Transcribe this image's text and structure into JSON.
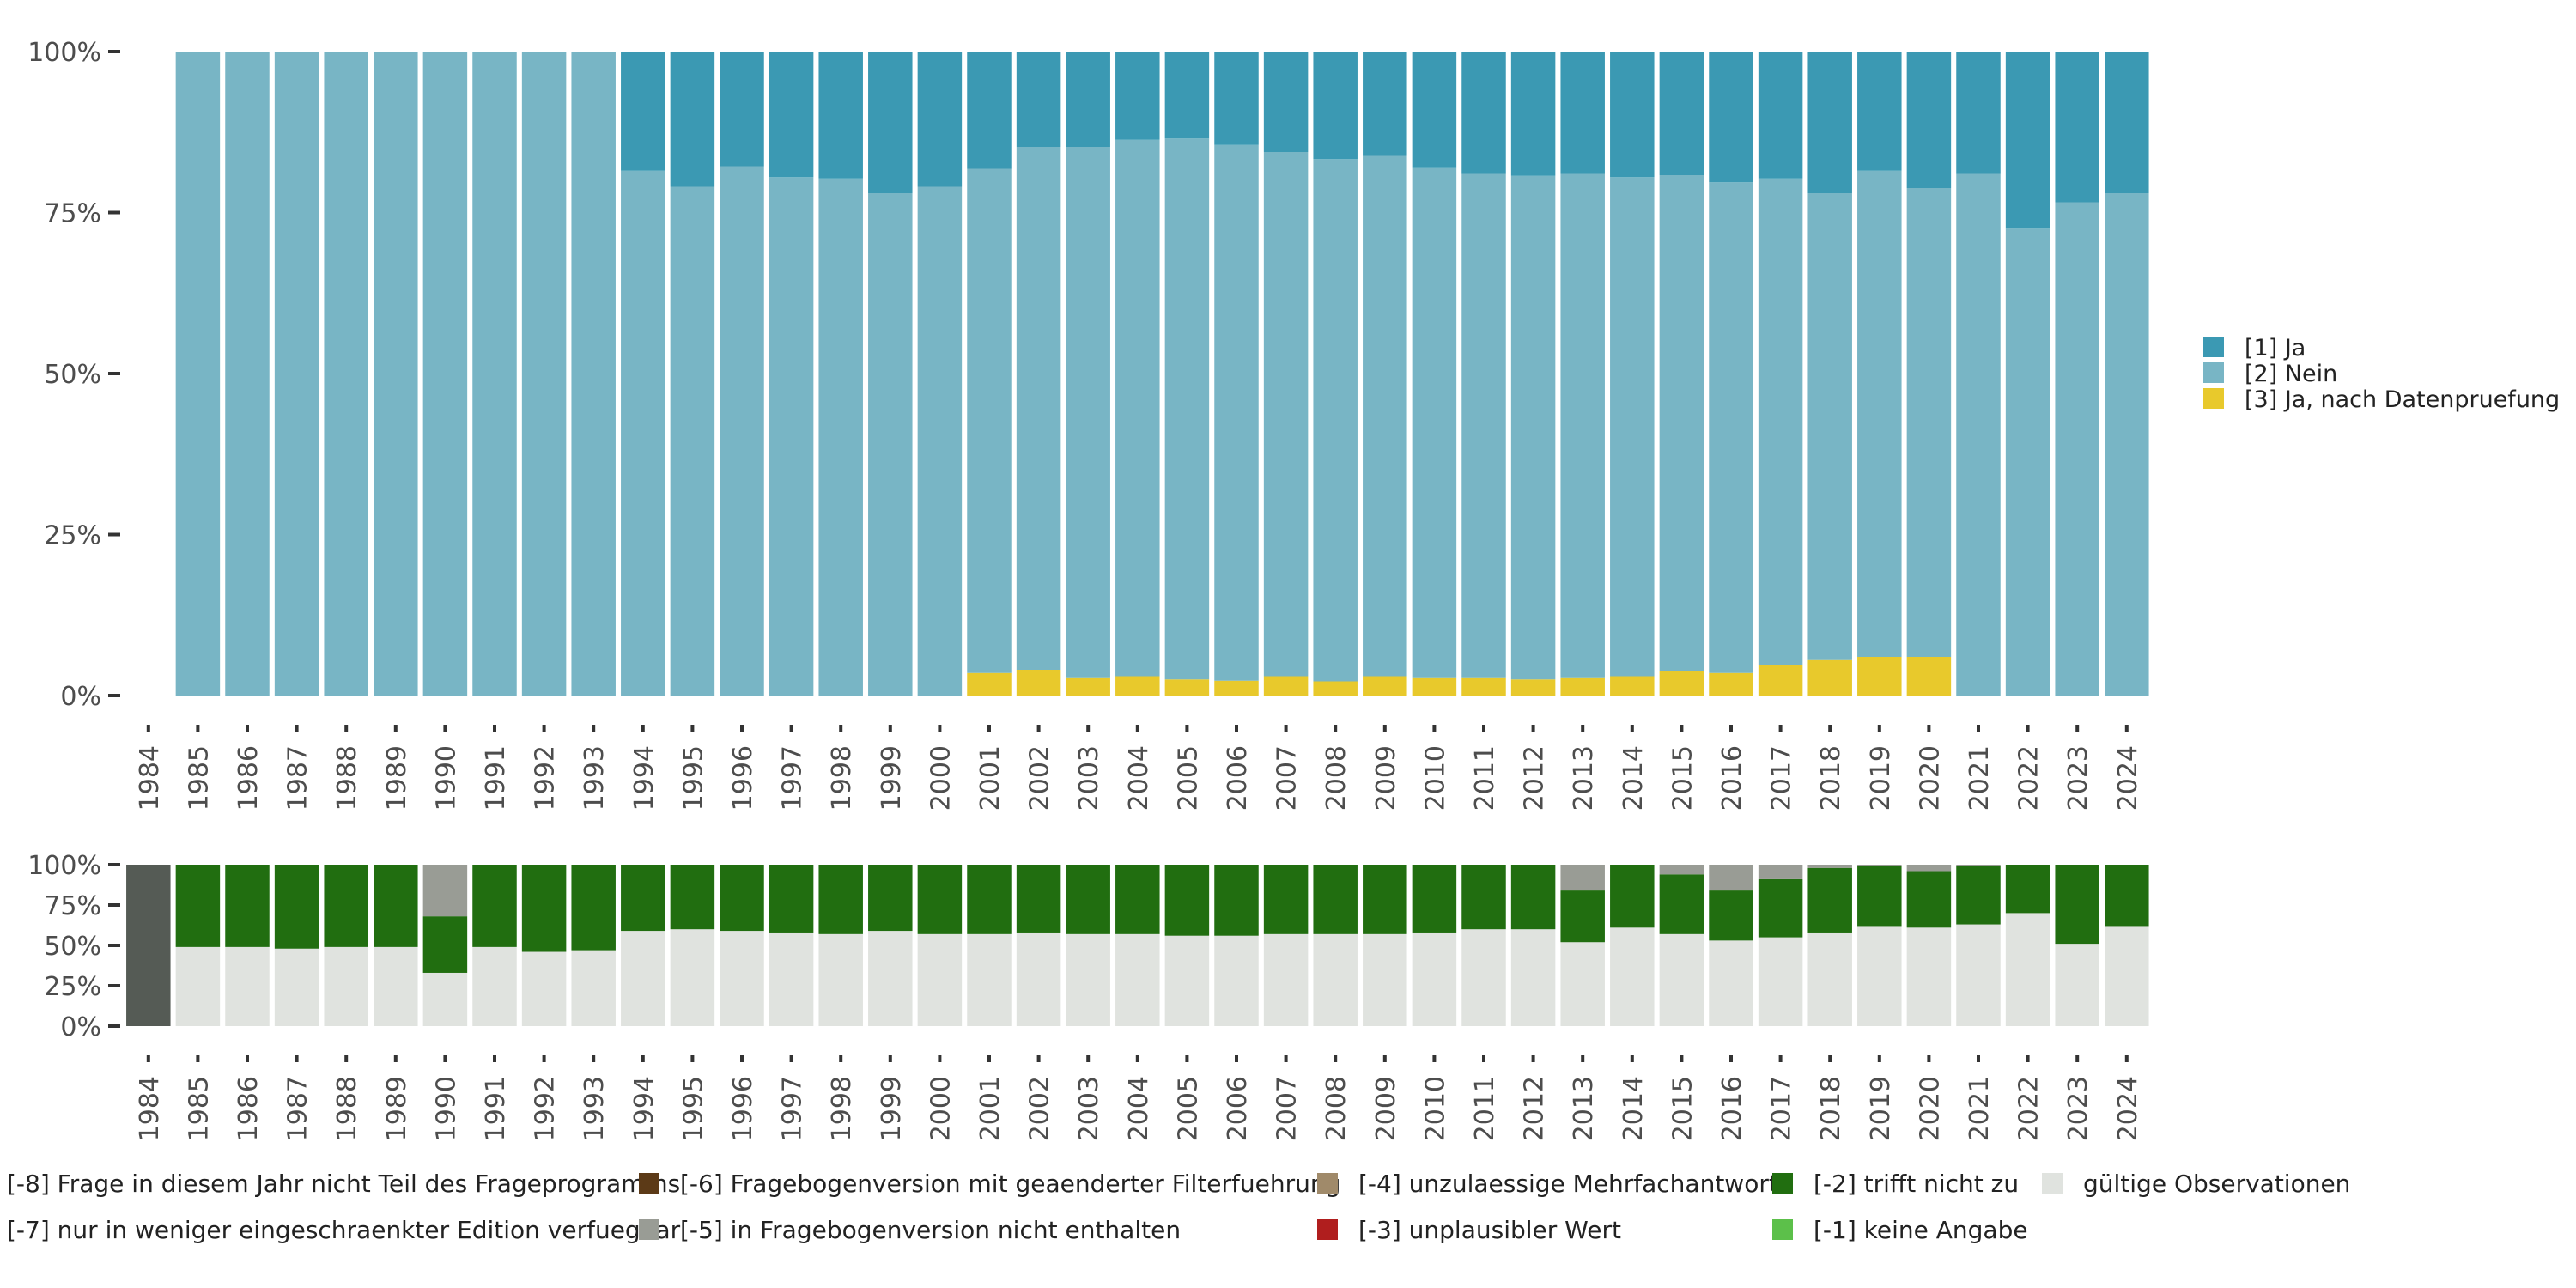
{
  "chart_data": [
    {
      "type": "bar",
      "stacked": true,
      "title": "",
      "xlabel": "",
      "ylabel": "",
      "ylim": [
        0,
        100
      ],
      "y_ticks": [
        "0%",
        "25%",
        "50%",
        "75%",
        "100%"
      ],
      "categories": [
        "1984",
        "1985",
        "1986",
        "1987",
        "1988",
        "1989",
        "1990",
        "1991",
        "1992",
        "1993",
        "1994",
        "1995",
        "1996",
        "1997",
        "1998",
        "1999",
        "2000",
        "2001",
        "2002",
        "2003",
        "2004",
        "2005",
        "2006",
        "2007",
        "2008",
        "2009",
        "2010",
        "2011",
        "2012",
        "2013",
        "2014",
        "2015",
        "2016",
        "2017",
        "2018",
        "2019",
        "2020",
        "2021",
        "2022",
        "2023",
        "2024"
      ],
      "series": [
        {
          "name": "[3] Ja, nach Datenpruefung",
          "color": "#e8c92c",
          "values": [
            null,
            0,
            0,
            0,
            0,
            0,
            0,
            0,
            0,
            0,
            0,
            0,
            0,
            0,
            0,
            0,
            0,
            3.5,
            4,
            2.7,
            3,
            2.5,
            2.3,
            3,
            2.2,
            3,
            2.7,
            2.7,
            2.5,
            2.7,
            3,
            3.8,
            3.5,
            4.8,
            5.5,
            6,
            6,
            0,
            0,
            0,
            0
          ]
        },
        {
          "name": "[2] Nein",
          "color": "#78b5c5",
          "values": [
            null,
            100,
            100,
            100,
            100,
            100,
            100,
            100,
            100,
            100,
            81.5,
            79,
            82.2,
            80.5,
            80.3,
            78,
            79,
            78.3,
            81.2,
            82.5,
            83.3,
            84,
            83.2,
            81.4,
            81.1,
            80.8,
            79.2,
            78.3,
            78.2,
            78.3,
            77.5,
            77,
            76.2,
            75.5,
            72.5,
            75.5,
            72.8,
            81,
            72.5,
            76.6,
            78
          ]
        },
        {
          "name": "[1] Ja",
          "color": "#3b99b3",
          "values": [
            null,
            0,
            0,
            0,
            0,
            0,
            0,
            0,
            0,
            0,
            18.5,
            21,
            17.8,
            19.5,
            19.7,
            22,
            21,
            18.2,
            14.8,
            14.8,
            13.7,
            13.5,
            14.5,
            15.6,
            16.7,
            16.2,
            18.1,
            19,
            19.3,
            19,
            19.5,
            19.2,
            20.3,
            19.7,
            22,
            18.5,
            21.2,
            19,
            27.5,
            23.4,
            22
          ]
        }
      ],
      "legend": {
        "position": "right",
        "entries": [
          "[1] Ja",
          "[2] Nein",
          "[3] Ja, nach Datenpruefung"
        ]
      }
    },
    {
      "type": "bar",
      "stacked": true,
      "title": "",
      "xlabel": "",
      "ylabel": "",
      "ylim": [
        0,
        100
      ],
      "y_ticks": [
        "0%",
        "25%",
        "50%",
        "75%",
        "100%"
      ],
      "categories": [
        "1984",
        "1985",
        "1986",
        "1987",
        "1988",
        "1989",
        "1990",
        "1991",
        "1992",
        "1993",
        "1994",
        "1995",
        "1996",
        "1997",
        "1998",
        "1999",
        "2000",
        "2001",
        "2002",
        "2003",
        "2004",
        "2005",
        "2006",
        "2007",
        "2008",
        "2009",
        "2010",
        "2011",
        "2012",
        "2013",
        "2014",
        "2015",
        "2016",
        "2017",
        "2018",
        "2019",
        "2020",
        "2021",
        "2022",
        "2023",
        "2024"
      ],
      "series": [
        {
          "name": "gültige Observationen",
          "color": "#e0e3df",
          "values": [
            0,
            49,
            49,
            48,
            49,
            49,
            33,
            49,
            46,
            47,
            59,
            60,
            59,
            58,
            57,
            59,
            57,
            57,
            58,
            57,
            57,
            56,
            56,
            57,
            57,
            57,
            58,
            60,
            60,
            52,
            61,
            57,
            53,
            55,
            58,
            62,
            61,
            63,
            70,
            51,
            62
          ]
        },
        {
          "name": "[-2] trifft nicht zu",
          "color": "#216e10",
          "values": [
            0,
            51,
            51,
            52,
            51,
            51,
            35,
            51,
            54,
            53,
            41,
            40,
            41,
            42,
            43,
            41,
            43,
            43,
            42,
            43,
            43,
            44,
            44,
            43,
            43,
            43,
            42,
            40,
            40,
            32,
            39,
            37,
            31,
            36,
            40,
            37,
            35,
            36,
            30,
            49,
            38
          ]
        },
        {
          "name": "[-5] in Fragebogenversion nicht enthalten",
          "color": "#999c95",
          "values": [
            0,
            0,
            0,
            0,
            0,
            0,
            32,
            0,
            0,
            0,
            0,
            0,
            0,
            0,
            0,
            0,
            0,
            0,
            0,
            0,
            0,
            0,
            0,
            0,
            0,
            0,
            0,
            0,
            0,
            16,
            0,
            6,
            16,
            9,
            2,
            1,
            4,
            1,
            0,
            0,
            0
          ]
        },
        {
          "name": "[-8] Frage in diesem Jahr nicht Teil des Frageprogramms",
          "color": "#555b55",
          "values": [
            100,
            0,
            0,
            0,
            0,
            0,
            0,
            0,
            0,
            0,
            0,
            0,
            0,
            0,
            0,
            0,
            0,
            0,
            0,
            0,
            0,
            0,
            0,
            0,
            0,
            0,
            0,
            0,
            0,
            0,
            0,
            0,
            0,
            0,
            0,
            0,
            0,
            0,
            0,
            0,
            0
          ]
        }
      ],
      "legend": {
        "position": "bottom",
        "entries": [
          {
            "label": "[-8] Frage in diesem Jahr nicht Teil des Frageprogramms",
            "color": "#555b55"
          },
          {
            "label": "[-6] Fragebogenversion mit geaenderter Filterfuehrung",
            "color": "#5c3a17"
          },
          {
            "label": "[-4] unzulaessige Mehrfachantwort",
            "color": "#a08a6a"
          },
          {
            "label": "[-2] trifft nicht zu",
            "color": "#216e10"
          },
          {
            "label": "gültige Observationen",
            "color": "#e0e3df"
          },
          {
            "label": "[-7] nur in weniger eingeschraenkter Edition verfuegbar",
            "color": "#999c95"
          },
          {
            "label": "[-5] in Fragebogenversion nicht enthalten",
            "color": "#999c95"
          },
          {
            "label": "[-3] unplausibler Wert",
            "color": "#b01e1e"
          },
          {
            "label": "[-1] keine Angabe",
            "color": "#5cc04a"
          }
        ]
      }
    }
  ]
}
